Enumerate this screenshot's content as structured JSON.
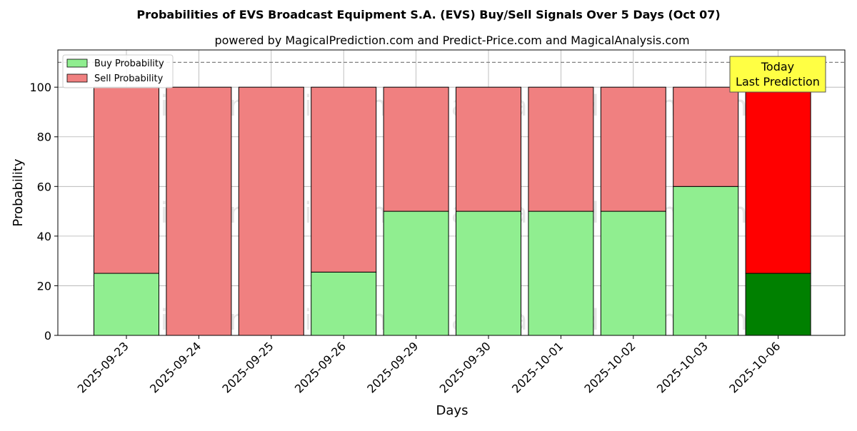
{
  "chart_data": {
    "type": "bar",
    "stacked": true,
    "title": "Probabilities of EVS Broadcast Equipment S.A. (EVS) Buy/Sell Signals Over 5 Days (Oct 07)",
    "subtitle": "powered by MagicalPrediction.com and Predict-Price.com and MagicalAnalysis.com",
    "xlabel": "Days",
    "ylabel": "Probability",
    "ylim": [
      0,
      115
    ],
    "yticks": [
      0,
      20,
      40,
      60,
      80,
      100
    ],
    "grid": true,
    "legend_position": "top-left",
    "reference_line": {
      "y": 110,
      "style": "dashed",
      "color": "#808080"
    },
    "categories": [
      "2025-09-23",
      "2025-09-24",
      "2025-09-25",
      "2025-09-26",
      "2025-09-29",
      "2025-09-30",
      "2025-10-01",
      "2025-10-02",
      "2025-10-03",
      "2025-10-06"
    ],
    "series": [
      {
        "name": "Buy Probability",
        "color": "#90ee90",
        "highlight_color": "#008000",
        "values": [
          25,
          0,
          0,
          25.5,
          50,
          50,
          50,
          50,
          60,
          25
        ]
      },
      {
        "name": "Sell Probability",
        "color": "#f08080",
        "highlight_color": "#ff0000",
        "values": [
          75,
          100,
          100,
          74.5,
          50,
          50,
          50,
          50,
          40,
          75
        ]
      }
    ],
    "highlight_index": 9,
    "annotation": {
      "line1": "Today",
      "line2": "Last Prediction",
      "color": "#ffff44"
    },
    "watermarks": [
      "MagicalAnalysis.com",
      "MagicalPrediction.com"
    ]
  }
}
